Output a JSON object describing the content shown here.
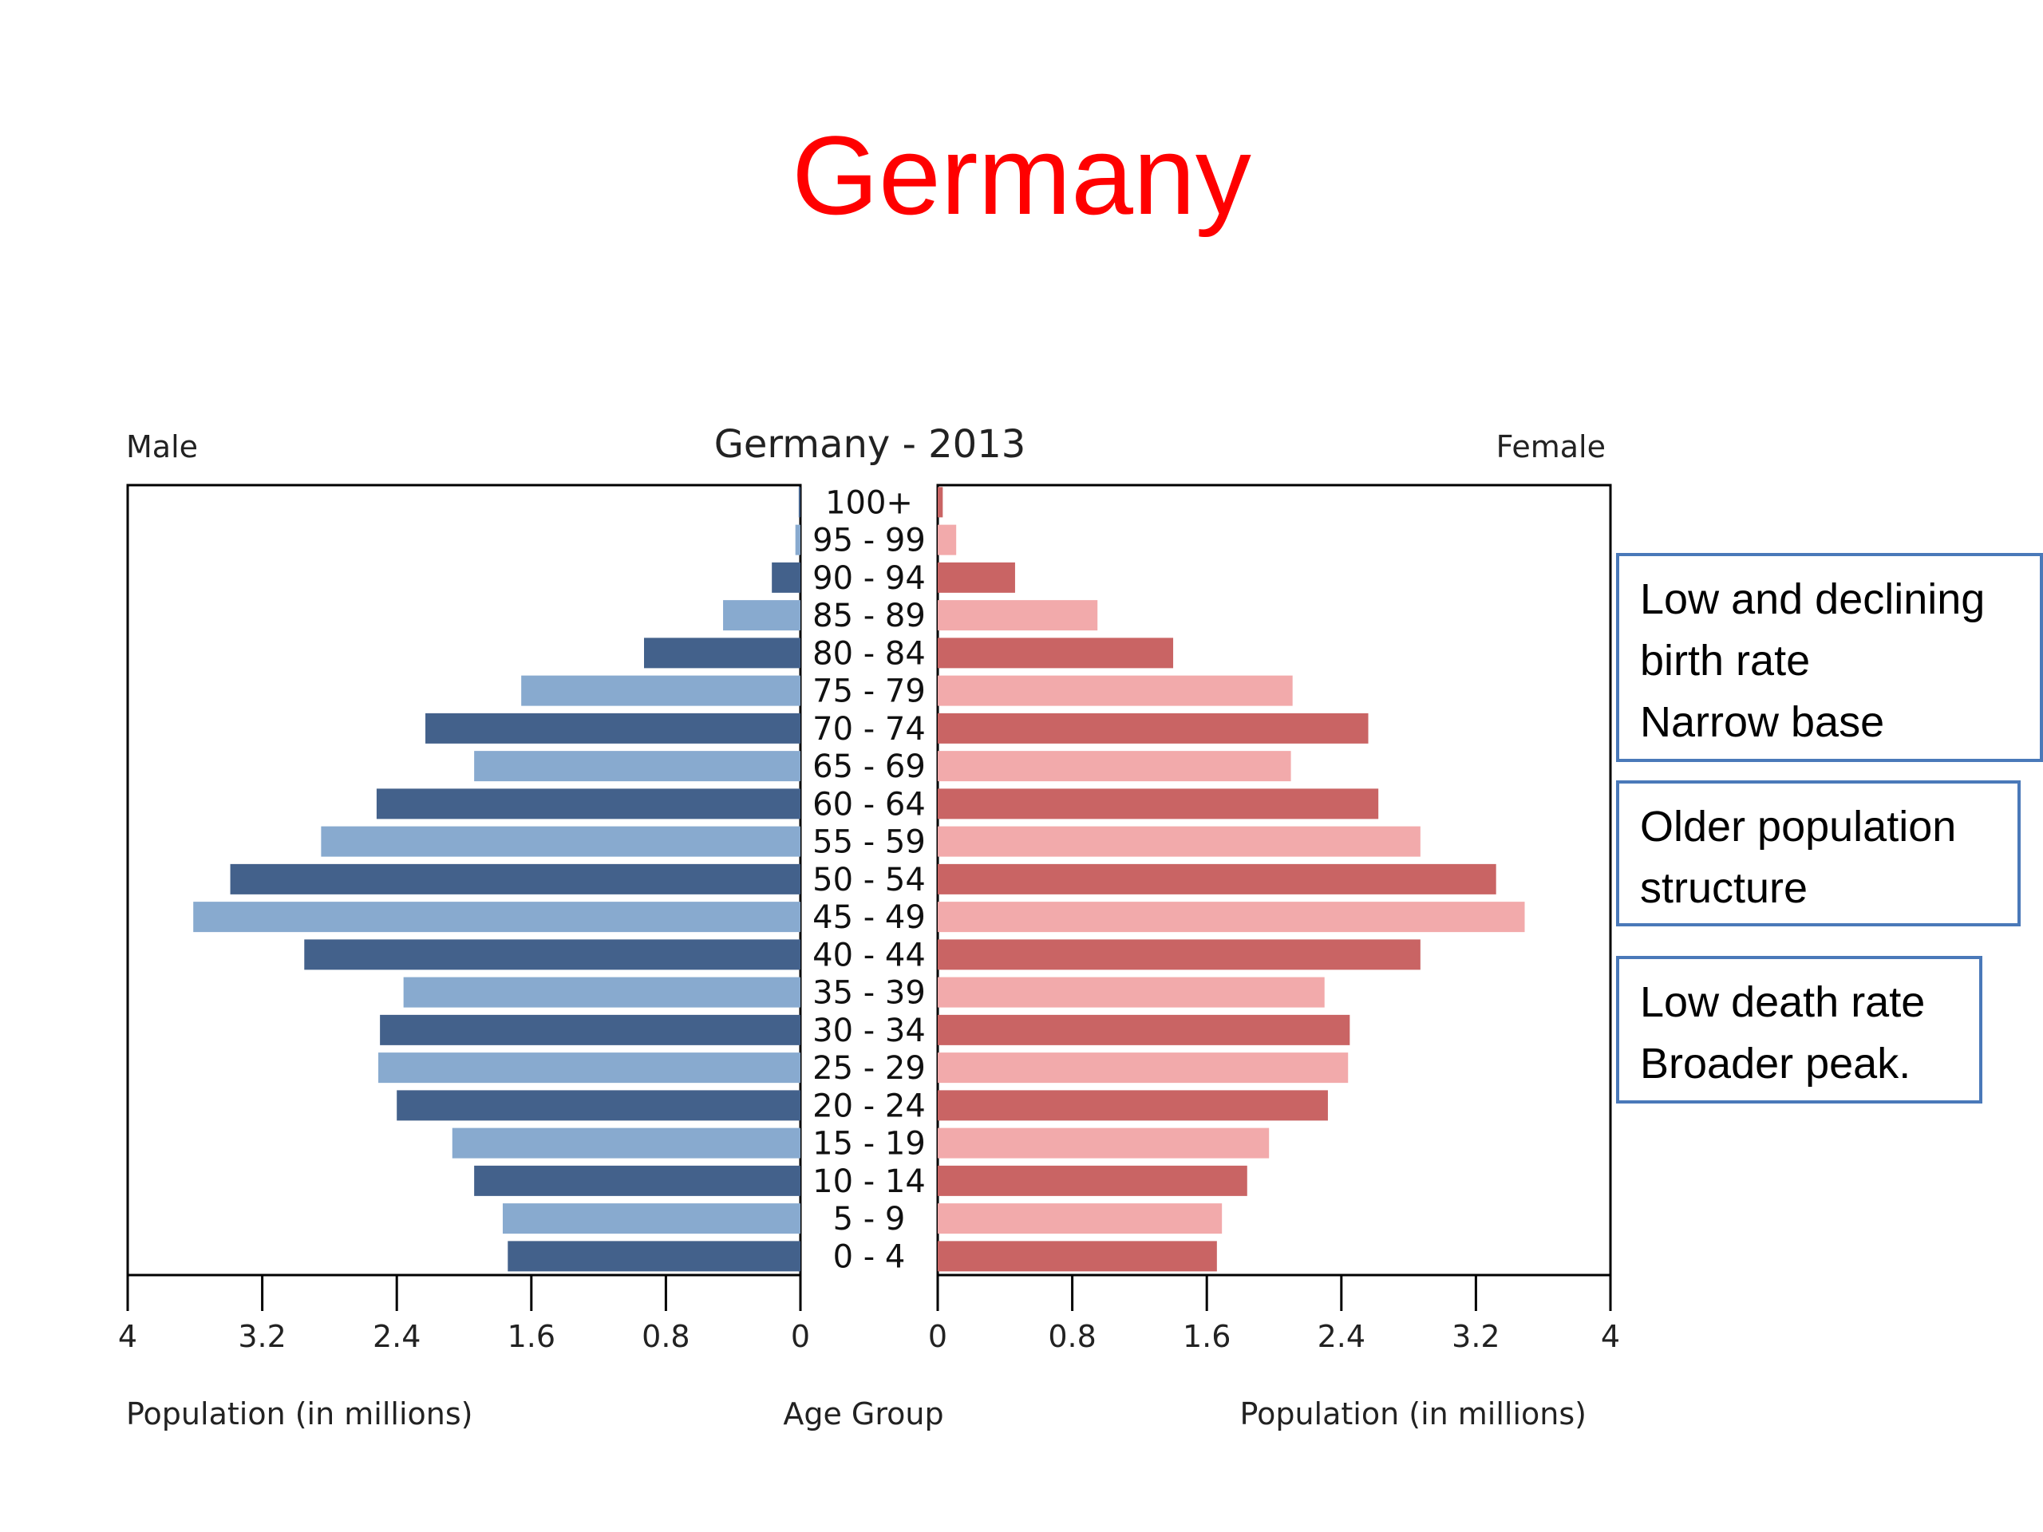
{
  "slide": {
    "title": "Germany",
    "title_color": "#ff0000"
  },
  "annotations": [
    {
      "lines": [
        "Low and declining",
        "birth rate",
        "Narrow base"
      ]
    },
    {
      "lines": [
        "Older population",
        "structure"
      ]
    },
    {
      "lines": [
        "Low death rate",
        "Broader peak."
      ]
    }
  ],
  "annotation_border_color": "#4a79b9",
  "chart_data": {
    "type": "bar",
    "orientation": "horizontal",
    "subtype": "population-pyramid",
    "title": "Germany - 2013",
    "left_label": "Male",
    "right_label": "Female",
    "xlabel_left": "Population (in millions)",
    "xlabel_right": "Population (in millions)",
    "center_label": "Age Group",
    "xlim": [
      0,
      4
    ],
    "x_ticks": [
      "0",
      "0.8",
      "1.6",
      "2.4",
      "3.2",
      "4"
    ],
    "grid": false,
    "categories": [
      "0 - 4",
      "5 - 9",
      "10 - 14",
      "15 - 19",
      "20 - 24",
      "25 - 29",
      "30 - 34",
      "35 - 39",
      "40 - 44",
      "45 - 49",
      "50 - 54",
      "55 - 59",
      "60 - 64",
      "65 - 69",
      "70 - 74",
      "75 - 79",
      "80 - 84",
      "85 - 89",
      "90 - 94",
      "95 - 99",
      "100+"
    ],
    "series": [
      {
        "name": "Male",
        "colors": [
          "#43618b",
          "#88aacf"
        ],
        "values": [
          1.74,
          1.77,
          1.94,
          2.07,
          2.4,
          2.51,
          2.5,
          2.36,
          2.95,
          3.61,
          3.39,
          2.85,
          2.52,
          1.94,
          2.23,
          1.66,
          0.93,
          0.46,
          0.17,
          0.03,
          0.01
        ]
      },
      {
        "name": "Female",
        "colors": [
          "#c96464",
          "#f2aaab"
        ],
        "values": [
          1.66,
          1.69,
          1.84,
          1.97,
          2.32,
          2.44,
          2.45,
          2.3,
          2.87,
          3.49,
          3.32,
          2.87,
          2.62,
          2.1,
          2.56,
          2.11,
          1.4,
          0.95,
          0.46,
          0.11,
          0.03
        ]
      }
    ]
  }
}
